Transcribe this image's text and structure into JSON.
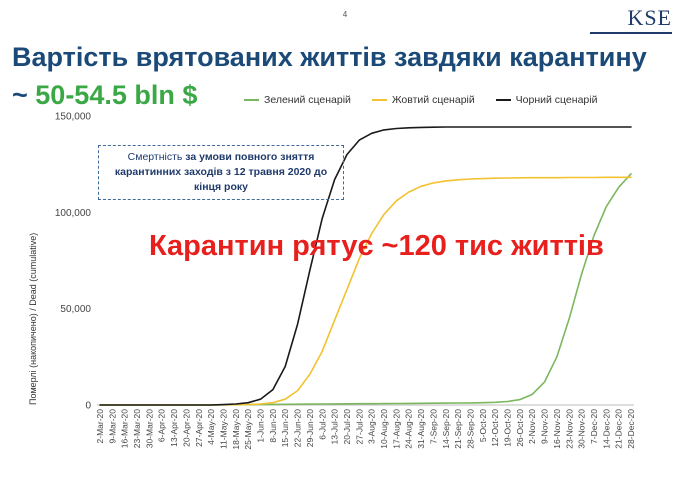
{
  "page": {
    "number": "4",
    "logo": "KSE"
  },
  "header": {
    "title": "Вартість врятованих життів завдяки карантину",
    "subtitle_prefix": "~ ",
    "subtitle_value": "50-54.5 bln $"
  },
  "note": {
    "part1": "Смертність ",
    "part2_bold": "за умови повного зняття карантинних заходів з 12 травня 2020 до кінця року"
  },
  "callout": "Карантин рятує ~120 тис життів",
  "colors": {
    "green": "#7cb75f",
    "yellow": "#f2c230",
    "black": "#1a1a1a",
    "title": "#1b4a78",
    "callout": "#e8201d"
  },
  "chart_data": {
    "type": "line",
    "ylabel": "Померлі (накопичено) / Dead (cumulative)",
    "ylim": [
      0,
      150000
    ],
    "yticks": [
      0,
      50000,
      100000,
      150000
    ],
    "ytick_labels": [
      "0",
      "50,000",
      "100,000",
      "150,000"
    ],
    "legend_position": "top",
    "grid": false,
    "categories": [
      "2-Mar-20",
      "9-Mar-20",
      "16-Mar-20",
      "23-Mar-20",
      "30-Mar-20",
      "6-Apr-20",
      "13-Apr-20",
      "20-Apr-20",
      "27-Apr-20",
      "4-May-20",
      "11-May-20",
      "18-May-20",
      "25-May-20",
      "1-Jun-20",
      "8-Jun-20",
      "15-Jun-20",
      "22-Jun-20",
      "29-Jun-20",
      "6-Jul-20",
      "13-Jul-20",
      "20-Jul-20",
      "27-Jul-20",
      "3-Aug-20",
      "10-Aug-20",
      "17-Aug-20",
      "24-Aug-20",
      "31-Aug-20",
      "7-Sep-20",
      "14-Sep-20",
      "21-Sep-20",
      "28-Sep-20",
      "5-Oct-20",
      "12-Oct-20",
      "19-Oct-20",
      "26-Oct-20",
      "2-Nov-20",
      "9-Nov-20",
      "16-Nov-20",
      "23-Nov-20",
      "30-Nov-20",
      "7-Dec-20",
      "14-Dec-20",
      "21-Dec-20",
      "28-Dec-20"
    ],
    "series": [
      {
        "name": "Зелений сценарій",
        "color": "#7cb75f",
        "values": [
          0,
          0,
          0,
          0,
          0,
          0,
          0,
          0,
          0,
          50,
          100,
          150,
          200,
          250,
          300,
          350,
          400,
          450,
          500,
          550,
          600,
          650,
          700,
          750,
          800,
          850,
          900,
          950,
          1000,
          1050,
          1100,
          1200,
          1400,
          1800,
          2800,
          5500,
          12000,
          25000,
          45000,
          68000,
          88000,
          103000,
          113000,
          120000
        ]
      },
      {
        "name": "Жовтий сценарій",
        "color": "#f2c230",
        "values": [
          0,
          0,
          0,
          0,
          0,
          0,
          0,
          0,
          0,
          0,
          100,
          150,
          250,
          500,
          1200,
          3000,
          7500,
          16000,
          28000,
          44000,
          60000,
          76000,
          89000,
          99000,
          106000,
          110500,
          113500,
          115300,
          116300,
          116900,
          117300,
          117500,
          117700,
          117800,
          117900,
          118000,
          118000,
          118000,
          118100,
          118100,
          118100,
          118200,
          118200,
          118200
        ]
      },
      {
        "name": "Чорний сценарій",
        "color": "#1a1a1a",
        "values": [
          0,
          0,
          0,
          0,
          0,
          0,
          0,
          0,
          0,
          0,
          200,
          500,
          1200,
          3000,
          8000,
          20000,
          42000,
          70000,
          97000,
          117000,
          130000,
          137500,
          141000,
          142800,
          143500,
          143900,
          144100,
          144200,
          144300,
          144300,
          144300,
          144300,
          144300,
          144300,
          144300,
          144300,
          144300,
          144300,
          144300,
          144300,
          144300,
          144300,
          144300,
          144300
        ]
      }
    ]
  }
}
